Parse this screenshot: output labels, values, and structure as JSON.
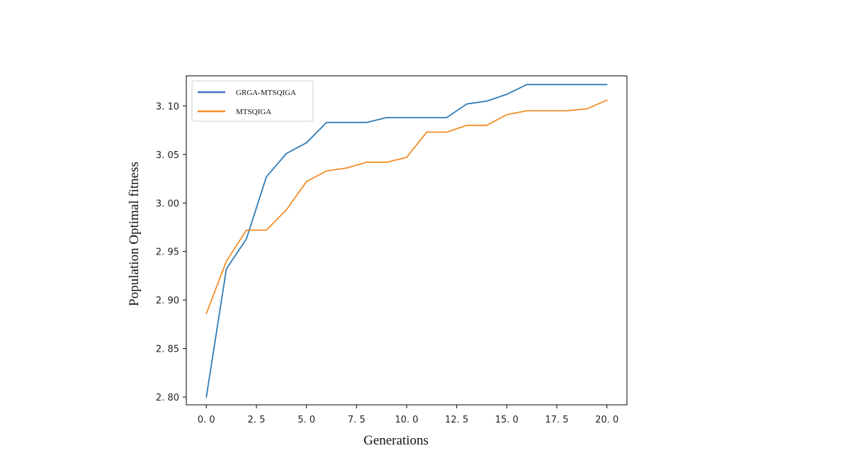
{
  "chart_data": {
    "type": "line",
    "title": "",
    "xlabel": "Generations",
    "ylabel": "Population Optimal fitness",
    "xlim": [
      -1,
      21
    ],
    "ylim": [
      2.792,
      3.131
    ],
    "xticks": [
      0,
      2.5,
      5,
      7.5,
      10,
      12.5,
      15,
      17.5,
      20
    ],
    "xtick_labels": [
      "0. 0",
      "2. 5",
      "5. 0",
      "7. 5",
      "10. 0",
      "12. 5",
      "15. 0",
      "17. 5",
      "20. 0"
    ],
    "yticks": [
      2.8,
      2.85,
      2.9,
      2.95,
      3.0,
      3.05,
      3.1
    ],
    "ytick_labels": [
      "2. 80",
      "2. 85",
      "2. 90",
      "2. 95",
      "3. 00",
      "3. 05",
      "3. 10"
    ],
    "grid": false,
    "legend_position": "top-left",
    "x": [
      0,
      1,
      2,
      3,
      4,
      5,
      6,
      7,
      8,
      9,
      10,
      11,
      12,
      13,
      14,
      15,
      16,
      17,
      18,
      19,
      20
    ],
    "series": [
      {
        "name": "GRGA-MTSQIGA",
        "color": "#2f7bb5",
        "legend_color": "#4472c4",
        "values": [
          2.8,
          2.932,
          2.963,
          3.027,
          3.051,
          3.062,
          3.083,
          3.083,
          3.083,
          3.088,
          3.088,
          3.088,
          3.088,
          3.102,
          3.105,
          3.112,
          3.122,
          3.122,
          3.122,
          3.122,
          3.122
        ]
      },
      {
        "name": "MTSQIGA",
        "color": "#f28c28",
        "legend_color": "#f28c28",
        "values": [
          2.886,
          2.94,
          2.972,
          2.972,
          2.993,
          3.022,
          3.033,
          3.036,
          3.042,
          3.042,
          3.047,
          3.073,
          3.073,
          3.08,
          3.08,
          3.091,
          3.095,
          3.095,
          3.095,
          3.097,
          3.106
        ]
      }
    ]
  }
}
